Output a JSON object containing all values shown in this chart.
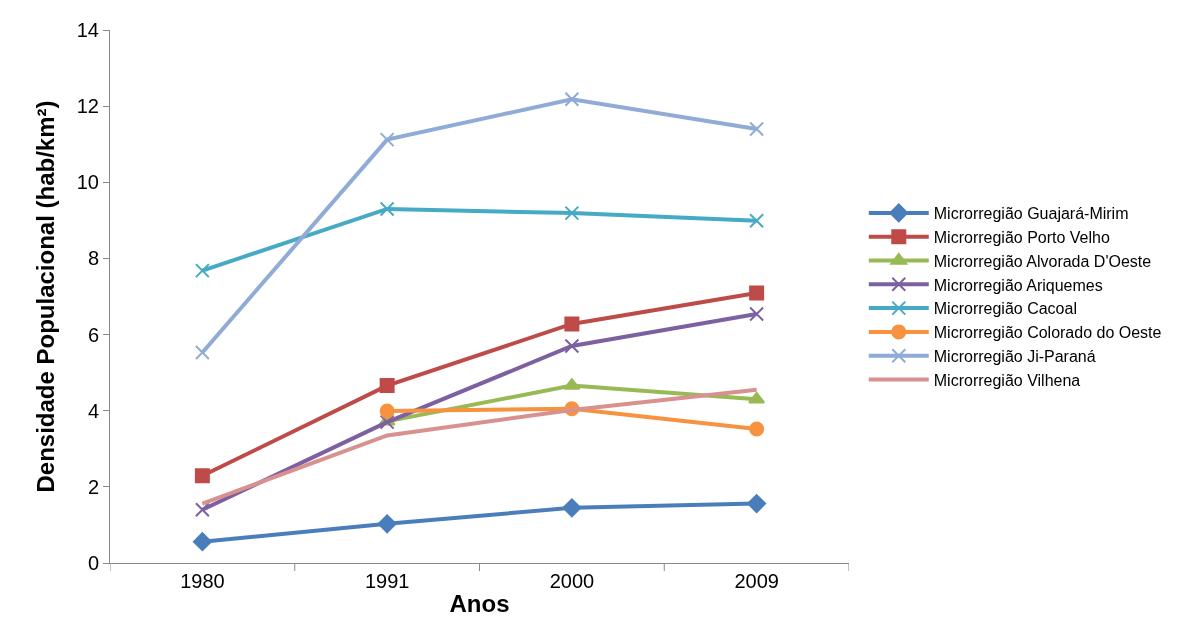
{
  "chart_data": {
    "type": "line",
    "xlabel": "Anos",
    "ylabel": "Densidade Populacional (hab/km²)",
    "categories": [
      "1980",
      "1991",
      "2000",
      "2009"
    ],
    "ylim": [
      0,
      14
    ],
    "yticks": [
      0,
      2,
      4,
      6,
      8,
      10,
      12,
      14
    ],
    "legend": "right",
    "series": [
      {
        "name": "Microrregião Guajará-Mirim",
        "color": "#4a7ebb",
        "marker": "diamond",
        "values": [
          0.56,
          1.03,
          1.45,
          1.56
        ]
      },
      {
        "name": "Microrregião Porto Velho",
        "color": "#be4b48",
        "marker": "square",
        "values": [
          2.29,
          4.66,
          6.28,
          7.09
        ]
      },
      {
        "name": "Microrregião Alvorada D'Oeste",
        "color": "#98b954",
        "marker": "triangle",
        "values": [
          null,
          3.72,
          4.66,
          4.3
        ]
      },
      {
        "name": "Microrregião Ariquemes",
        "color": "#7d60a0",
        "marker": "cross",
        "values": [
          1.4,
          3.7,
          5.7,
          6.54
        ]
      },
      {
        "name": "Microrregião Cacoal",
        "color": "#46aac5",
        "marker": "cross",
        "values": [
          7.68,
          9.3,
          9.19,
          8.99
        ]
      },
      {
        "name": "Microrregião Colorado do Oeste",
        "color": "#f69240",
        "marker": "circle",
        "values": [
          null,
          3.99,
          4.05,
          3.52
        ]
      },
      {
        "name": "Microrregião Ji-Paraná",
        "color": "#8fabd6",
        "marker": "cross",
        "values": [
          5.53,
          11.12,
          12.18,
          11.4
        ]
      },
      {
        "name": "Microrregião Vilhena",
        "color": "#d8918f",
        "marker": "none",
        "values": [
          1.56,
          3.35,
          4.02,
          4.55
        ]
      }
    ]
  }
}
